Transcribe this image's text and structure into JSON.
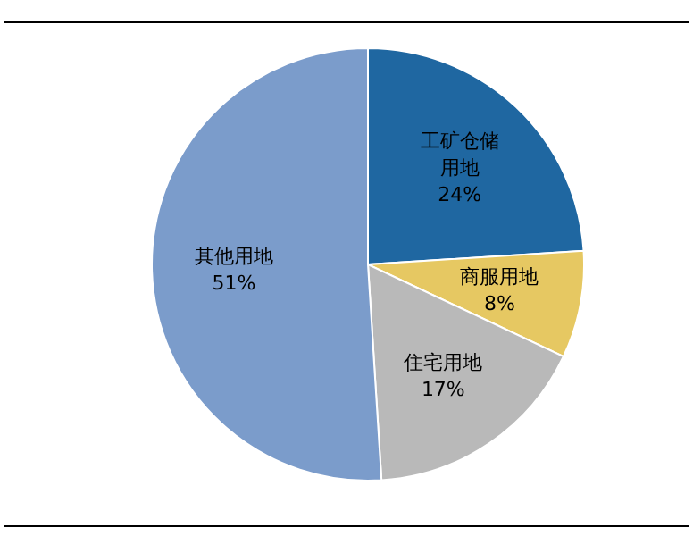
{
  "chart_data": {
    "type": "pie",
    "categories": [
      "工矿仓储用地",
      "商服用地",
      "住宅用地",
      "其他用地"
    ],
    "values": [
      24,
      8,
      17,
      51
    ],
    "colors": [
      "#1f67a1",
      "#e6c862",
      "#b9b9b9",
      "#7b9ccb"
    ],
    "value_labels": [
      "24%",
      "8%",
      "17%",
      "51%"
    ]
  }
}
